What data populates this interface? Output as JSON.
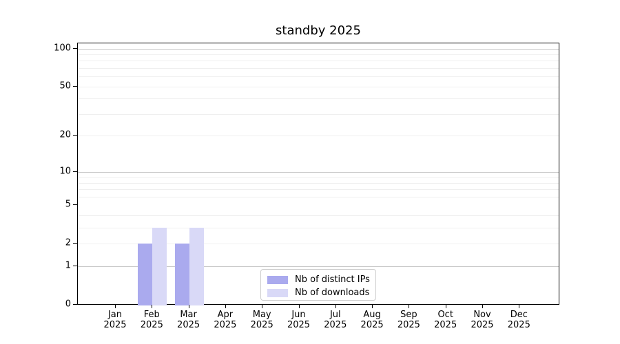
{
  "chart_data": {
    "type": "bar",
    "title": "standby 2025",
    "categories": [
      "Jan 2025",
      "Feb 2025",
      "Mar 2025",
      "Apr 2025",
      "May 2025",
      "Jun 2025",
      "Jul 2025",
      "Aug 2025",
      "Sep 2025",
      "Oct 2025",
      "Nov 2025",
      "Dec 2025"
    ],
    "series": [
      {
        "name": "Nb of distinct IPs",
        "color": "#aaaaee",
        "values": [
          0,
          2,
          2,
          0,
          0,
          0,
          0,
          0,
          0,
          0,
          0,
          0
        ]
      },
      {
        "name": "Nb of downloads",
        "color": "#d9d9f7",
        "values": [
          0,
          3,
          3,
          0,
          0,
          0,
          0,
          0,
          0,
          0,
          0,
          0
        ]
      }
    ],
    "xlabel": "",
    "ylabel": "",
    "yscale": "log10(1+v)",
    "ylim": [
      0,
      110
    ],
    "yticks": [
      0,
      1,
      2,
      5,
      10,
      20,
      50,
      100
    ],
    "major_grid_values": [
      1,
      10,
      100
    ],
    "minor_grid_values": [
      2,
      3,
      4,
      6,
      7,
      8,
      9,
      20,
      30,
      40,
      50,
      60,
      70,
      80,
      90
    ],
    "grid": "horizontal only",
    "legend_position": "inside bottom-center",
    "colors": {
      "major_grid": "#c8c8c8",
      "minor_grid": "#efefef",
      "axis": "#000000",
      "legend_border": "#cccccc",
      "background": "#ffffff"
    }
  }
}
